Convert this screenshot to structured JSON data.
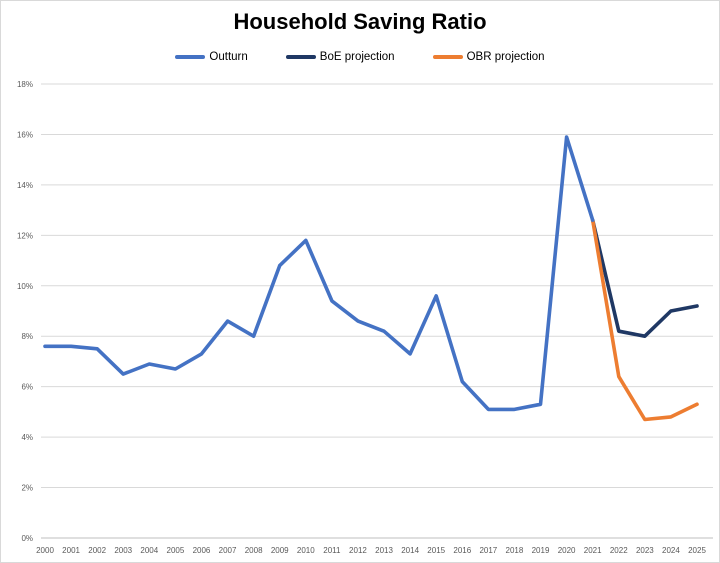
{
  "accent_colors": {
    "outturn_blue": "#4472C4",
    "boe_navy": "#1F3864",
    "obr_orange": "#ED7D31",
    "gridline_gray": "#D9D9D9",
    "axis_gray": "#BFBFBF",
    "tick_label_gray": "#595959"
  },
  "chart_data": {
    "type": "line",
    "title": "Household Saving Ratio",
    "xlabel": "",
    "ylabel": "",
    "ylim": [
      0,
      18
    ],
    "grid": true,
    "legend_position": "top",
    "x_tick_labels": [
      "2000",
      "2001",
      "2002",
      "2003",
      "2004",
      "2005",
      "2006",
      "2007",
      "2008",
      "2009",
      "2010",
      "2011",
      "2012",
      "2013",
      "2014",
      "2015",
      "2016",
      "2017",
      "2018",
      "2019",
      "2020",
      "2021",
      "2022",
      "2023",
      "2024",
      "2025"
    ],
    "y_ticks": [
      {
        "value": 0,
        "label": "0%"
      },
      {
        "value": 2,
        "label": "2%"
      },
      {
        "value": 4,
        "label": "4%"
      },
      {
        "value": 6,
        "label": "6%"
      },
      {
        "value": 8,
        "label": "8%"
      },
      {
        "value": 10,
        "label": "10%"
      },
      {
        "value": 12,
        "label": "12%"
      },
      {
        "value": 14,
        "label": "14%"
      },
      {
        "value": 16,
        "label": "16%"
      },
      {
        "value": 18,
        "label": "18%"
      }
    ],
    "series": [
      {
        "name": "BoE projection",
        "color": "#1F3864",
        "start_year": 2021,
        "values": [
          12.6,
          8.2,
          8.0,
          9.0,
          9.2
        ]
      },
      {
        "name": "OBR projection",
        "color": "#ED7D31",
        "start_year": 2021,
        "values": [
          12.6,
          6.4,
          4.7,
          4.8,
          5.3
        ]
      },
      {
        "name": "Outturn",
        "color": "#4472C4",
        "start_year": 2000,
        "values": [
          7.6,
          7.6,
          7.5,
          6.5,
          6.9,
          6.7,
          7.3,
          8.6,
          8.0,
          10.8,
          11.8,
          9.4,
          8.6,
          8.2,
          7.3,
          9.6,
          6.2,
          5.1,
          5.1,
          5.3,
          15.9,
          12.6
        ]
      }
    ],
    "legend_order": [
      "Outturn",
      "BoE projection",
      "OBR projection"
    ]
  },
  "legend": {
    "outturn_label": "Outturn",
    "boe_label": "BoE projection",
    "obr_label": "OBR projection"
  }
}
